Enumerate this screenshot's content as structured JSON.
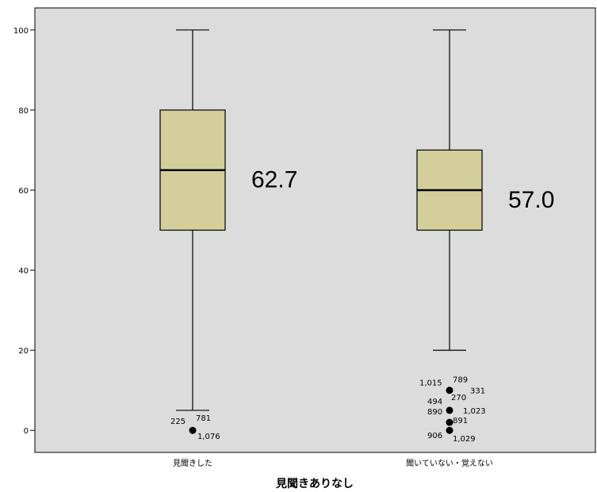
{
  "chart_data": {
    "type": "boxplot",
    "title": "",
    "xlabel": "見聞きありなし",
    "ylabel": "",
    "ylim": [
      -5.5,
      105.5
    ],
    "yticks": [
      0,
      20,
      40,
      60,
      80,
      100
    ],
    "grid": false,
    "colors": {
      "plot_bg": "#dcdcdc",
      "box_fill": "#d4cf9a",
      "stroke": "#000000"
    },
    "categories": [
      "見聞きした",
      "聞いていない・覚えない"
    ],
    "boxes": [
      {
        "category": "見聞きした",
        "whisker_low": 5,
        "q1": 50,
        "median": 65,
        "q3": 80,
        "whisker_high": 100,
        "mean_label": "62.7",
        "outliers": [
          {
            "y": 0,
            "ids": [
              "225",
              "781",
              "1,076"
            ]
          }
        ]
      },
      {
        "category": "聞いていない・覚えない",
        "whisker_low": 20,
        "q1": 50,
        "median": 60,
        "q3": 70,
        "whisker_high": 100,
        "mean_label": "57.0",
        "outliers": [
          {
            "y": 10,
            "ids": [
              "1,015",
              "789",
              "331"
            ]
          },
          {
            "y": 5,
            "ids": [
              "494",
              "270",
              "890",
              "1,023"
            ]
          },
          {
            "y": 2,
            "ids": [
              "891"
            ]
          },
          {
            "y": 0,
            "ids": [
              "906",
              "1,029"
            ]
          }
        ]
      }
    ]
  }
}
